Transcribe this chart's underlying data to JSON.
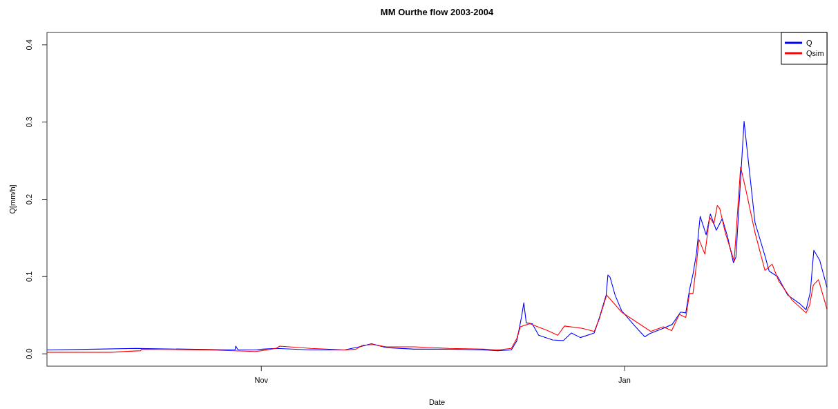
{
  "chart_data": {
    "type": "line",
    "title": "MM Ourthe flow 2003-2004",
    "xlabel": "Date",
    "ylabel": "Q[mm/h]",
    "xlim": [
      "2003-09-26",
      "2004-02-04"
    ],
    "xticks": [
      {
        "value": "2003-11-01",
        "label": "Nov"
      },
      {
        "value": "2004-01-01",
        "label": "Jan"
      }
    ],
    "ylim": [
      -0.016,
      0.416
    ],
    "yticks": [
      {
        "value": 0,
        "label": "0.0"
      },
      0.1,
      0.2,
      0.3,
      0.4
    ],
    "grid": false,
    "legend": "top right",
    "line_style": "solid",
    "marker": "none",
    "series": [
      {
        "name": "Q",
        "color": "#0000ff",
        "x": [
          "2003-09-26",
          "2003-10-04T08:00",
          "2003-10-11",
          "2003-10-27T14:00",
          "2003-10-27T17:00",
          "2003-10-28T02:00",
          "2003-10-31",
          "2003-11-01T05:00",
          "2003-11-03T12:00",
          "2003-11-09T07:00",
          "2003-11-15",
          "2003-11-18",
          "2003-11-19T12:00",
          "2003-11-22",
          "2003-11-26T17:00",
          "2003-12-02T12:00",
          "2003-12-08T07:00",
          "2003-12-10T17:00",
          "2003-12-13",
          "2003-12-13T22:00",
          "2003-12-14T17:00",
          "2003-12-15T02:00",
          "2003-12-15T12:00",
          "2003-12-16T12:00",
          "2003-12-17T14:00",
          "2003-12-19T22:00",
          "2003-12-21T17:00",
          "2003-12-23T02:00",
          "2003-12-24T14:00",
          "2003-12-26T22:00",
          "2003-12-27T17:00",
          "2003-12-28T22:00",
          "2003-12-29T05:00",
          "2003-12-29T14:00",
          "2003-12-30T10:00",
          "2003-12-31T12:00",
          "2004-01-02T12:00",
          "2004-01-04T10:00",
          "2004-01-05T05:00",
          "2004-01-07T12:00",
          "2004-01-09",
          "2004-01-10T10:00",
          "2004-01-11T07:00",
          "2004-01-11T22:00",
          "2004-01-12T12:00",
          "2004-01-13T02:00",
          "2004-01-13T17:00",
          "2004-01-14T17:00",
          "2004-01-15T10:00",
          "2004-01-16T10:00",
          "2004-01-17T10:00",
          "2004-01-18T07:00",
          "2004-01-19T07:00",
          "2004-01-19T17:00",
          "2004-01-21T02:00",
          "2004-01-21T19:00",
          "2004-01-22T22:00",
          "2004-01-24T14:00",
          "2004-01-25T07:00",
          "2004-01-26T17:00",
          "2004-01-28T10:00",
          "2004-01-30T10:00",
          "2004-01-31T12:00",
          "2004-02-01T05:00",
          "2004-02-01T19:00",
          "2004-02-02T19:00",
          "2004-02-04"
        ],
        "values": [
          0.005,
          0.006,
          0.007,
          0.005,
          0.01,
          0.005,
          0.005,
          0.006,
          0.007,
          0.005,
          0.005,
          0.01,
          0.013,
          0.008,
          0.006,
          0.006,
          0.005,
          0.004,
          0.005,
          0.017,
          0.048,
          0.066,
          0.04,
          0.039,
          0.024,
          0.018,
          0.017,
          0.027,
          0.021,
          0.027,
          0.045,
          0.076,
          0.102,
          0.099,
          0.076,
          0.056,
          0.038,
          0.022,
          0.026,
          0.033,
          0.038,
          0.054,
          0.053,
          0.083,
          0.103,
          0.13,
          0.178,
          0.154,
          0.181,
          0.16,
          0.175,
          0.152,
          0.118,
          0.125,
          0.301,
          0.25,
          0.17,
          0.127,
          0.107,
          0.1,
          0.076,
          0.065,
          0.057,
          0.08,
          0.134,
          0.121,
          0.086
        ]
      },
      {
        "name": "Qsim",
        "color": "#ff0000",
        "x": [
          "2003-09-26",
          "2003-10-06T17:00",
          "2003-10-11T17:00",
          "2003-10-11T22:00",
          "2003-10-23",
          "2003-10-31",
          "2003-11-01",
          "2003-11-03T12:00",
          "2003-11-04T02:00",
          "2003-11-09T07:00",
          "2003-11-15",
          "2003-11-16T22:00",
          "2003-11-18",
          "2003-11-19T19:00",
          "2003-11-22",
          "2003-11-26T17:00",
          "2003-12-02T12:00",
          "2003-12-08T07:00",
          "2003-12-10T17:00",
          "2003-12-13",
          "2003-12-13T22:00",
          "2003-12-14T12:00",
          "2003-12-16T02:00",
          "2003-12-19T02:00",
          "2003-12-20T19:00",
          "2003-12-21T22:00",
          "2003-12-24T22:00",
          "2003-12-26T22:00",
          "2003-12-27T17:00",
          "2003-12-29",
          "2003-12-31T12:00",
          "2004-01-05T10:00",
          "2004-01-07T12:00",
          "2004-01-08T22:00",
          "2004-01-10T05:00",
          "2004-01-11T07:00",
          "2004-01-11T22:00",
          "2004-01-12T12:00",
          "2004-01-13T02:00",
          "2004-01-13T12:00",
          "2004-01-14T12:00",
          "2004-01-15T07:00",
          "2004-01-16",
          "2004-01-16T14:00",
          "2004-01-17",
          "2004-01-17T22:00",
          "2004-01-19T10:00",
          "2004-01-20T12:00",
          "2004-01-21T10:00",
          "2004-01-22T22:00",
          "2004-01-24T14:00",
          "2004-01-25T19:00",
          "2004-01-26T22:00",
          "2004-01-29T05:00",
          "2004-01-31T12:00",
          "2004-02-01T02:00",
          "2004-02-01T17:00",
          "2004-02-02T14:00",
          "2004-02-04"
        ],
        "values": [
          0.002,
          0.002,
          0.004,
          0.006,
          0.005,
          0.003,
          0.004,
          0.007,
          0.01,
          0.007,
          0.005,
          0.006,
          0.011,
          0.012,
          0.009,
          0.009,
          0.007,
          0.006,
          0.005,
          0.007,
          0.02,
          0.035,
          0.039,
          0.03,
          0.024,
          0.036,
          0.033,
          0.029,
          0.044,
          0.076,
          0.054,
          0.029,
          0.035,
          0.03,
          0.051,
          0.047,
          0.078,
          0.078,
          0.116,
          0.148,
          0.129,
          0.177,
          0.168,
          0.192,
          0.188,
          0.157,
          0.12,
          0.242,
          0.211,
          0.157,
          0.108,
          0.116,
          0.094,
          0.069,
          0.053,
          0.063,
          0.089,
          0.096,
          0.058
        ]
      }
    ]
  }
}
